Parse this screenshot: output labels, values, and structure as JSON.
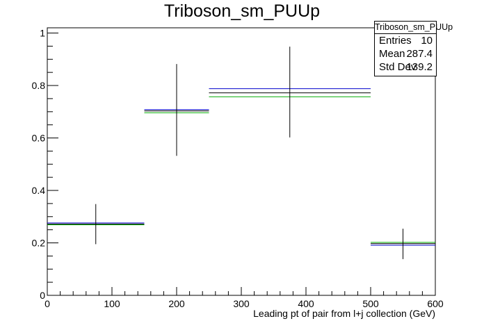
{
  "chart_data": {
    "type": "histogram",
    "title": "Triboson_sm_PUUp",
    "xlabel": "Leading pt of pair from l+j collection (GeV)",
    "ylabel": "",
    "xlim": [
      0,
      600
    ],
    "ylim": [
      0,
      1.02
    ],
    "x_ticks": [
      "0",
      "100",
      "200",
      "300",
      "400",
      "500",
      "600"
    ],
    "y_ticks": [
      "0",
      "0.2",
      "0.4",
      "0.6",
      "0.8",
      "1"
    ],
    "bins": [
      {
        "low": 0,
        "high": 150,
        "center": 75,
        "value": 0.272,
        "error_low": 0.195,
        "error_high": 0.348
      },
      {
        "low": 150,
        "high": 250,
        "center": 200,
        "value": 0.703,
        "error_low": 0.532,
        "error_high": 0.882
      },
      {
        "low": 250,
        "high": 500,
        "center": 375,
        "value": 0.772,
        "error_low": 0.602,
        "error_high": 0.948
      },
      {
        "low": 500,
        "high": 600,
        "center": 550,
        "value": 0.197,
        "error_low": 0.138,
        "error_high": 0.254
      }
    ],
    "variations": [
      {
        "color": "#0000cc",
        "values": [
          0.276,
          0.708,
          0.788,
          0.191
        ]
      },
      {
        "color": "#00aa00",
        "values": [
          0.269,
          0.696,
          0.757,
          0.202
        ]
      }
    ],
    "grid": false
  },
  "stats": {
    "name": "Triboson_sm_PUUp",
    "rows": [
      {
        "label": "Entries",
        "value": "10"
      },
      {
        "label": "Mean",
        "value": "287.4"
      },
      {
        "label": "Std Dev",
        "value": "139.2"
      }
    ]
  }
}
